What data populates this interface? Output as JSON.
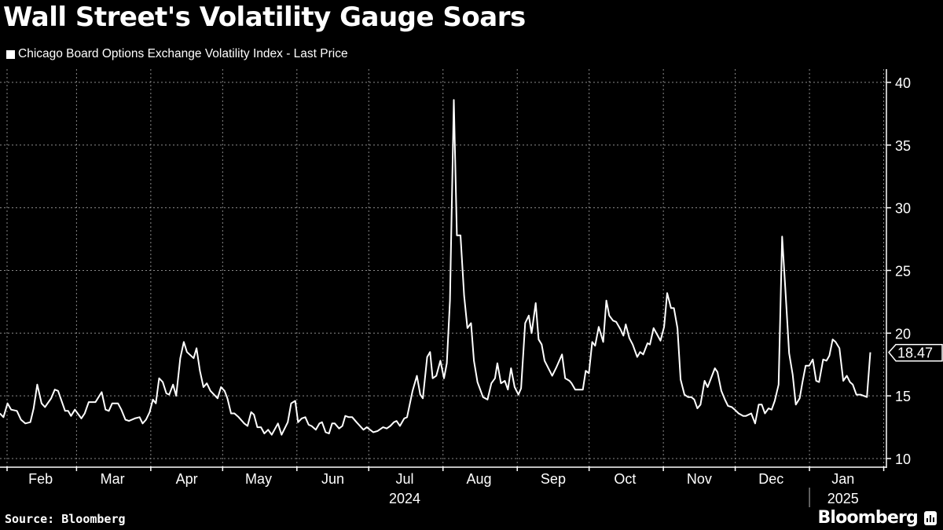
{
  "chart_data": {
    "type": "line",
    "title": "Wall Street's Volatility Gauge Soars",
    "legend": [
      "Chicago Board Options Exchange Volatility Index - Last Price"
    ],
    "legend_placement": "top-left",
    "source": "Source: Bloomberg",
    "ylim": [
      10,
      40
    ],
    "yticks": [
      10,
      15,
      20,
      25,
      30,
      35,
      40
    ],
    "y_axis_side": "right",
    "grid": true,
    "last_value_label": "18.47",
    "last_value": 18.47,
    "month_boundaries": [
      31,
      60,
      91,
      121,
      152,
      182,
      213,
      244,
      274,
      305,
      335,
      366,
      397
    ],
    "xticks": [
      {
        "label": "Feb",
        "day": 45
      },
      {
        "label": "Mar",
        "day": 75
      },
      {
        "label": "Apr",
        "day": 106
      },
      {
        "label": "May",
        "day": 136
      },
      {
        "label": "Jun",
        "day": 167
      },
      {
        "label": "Jul",
        "day": 197
      },
      {
        "label": "Aug",
        "day": 228
      },
      {
        "label": "Sep",
        "day": 259
      },
      {
        "label": "Oct",
        "day": 289
      },
      {
        "label": "Nov",
        "day": 320
      },
      {
        "label": "Dec",
        "day": 350
      },
      {
        "label": "Jan",
        "day": 380
      }
    ],
    "years": [
      {
        "label": "2024",
        "day": 197
      },
      {
        "label": "2025",
        "day": 380
      }
    ],
    "year_separator_day": 366,
    "xlim": [
      28,
      398
    ],
    "series": [
      {
        "name": "Chicago Board Options Exchange Volatility Index - Last Price",
        "points": [
          [
            28.0,
            13.6
          ],
          [
            29.5,
            13.3
          ],
          [
            31.2,
            14.4
          ],
          [
            32.7,
            13.9
          ],
          [
            35.1,
            13.8
          ],
          [
            36.8,
            13.1
          ],
          [
            38.6,
            12.8
          ],
          [
            40.7,
            12.9
          ],
          [
            42.1,
            14.0
          ],
          [
            43.6,
            15.9
          ],
          [
            45.4,
            14.4
          ],
          [
            46.8,
            14.1
          ],
          [
            49.4,
            14.8
          ],
          [
            50.9,
            15.5
          ],
          [
            52.3,
            15.4
          ],
          [
            55.2,
            13.8
          ],
          [
            56.5,
            13.8
          ],
          [
            57.7,
            13.4
          ],
          [
            59.3,
            13.9
          ],
          [
            62.0,
            13.2
          ],
          [
            63.4,
            13.6
          ],
          [
            65.1,
            14.5
          ],
          [
            67.9,
            14.5
          ],
          [
            70.5,
            15.3
          ],
          [
            72.1,
            13.9
          ],
          [
            73.5,
            13.8
          ],
          [
            74.9,
            14.4
          ],
          [
            77.3,
            14.4
          ],
          [
            78.7,
            13.9
          ],
          [
            80.4,
            13.1
          ],
          [
            81.9,
            13.0
          ],
          [
            84.3,
            13.2
          ],
          [
            86.3,
            13.3
          ],
          [
            87.6,
            12.8
          ],
          [
            89.0,
            13.1
          ],
          [
            90.5,
            13.7
          ],
          [
            91.9,
            14.7
          ],
          [
            93.1,
            14.4
          ],
          [
            94.5,
            16.4
          ],
          [
            96.0,
            16.1
          ],
          [
            97.5,
            15.2
          ],
          [
            98.7,
            15.1
          ],
          [
            100.3,
            15.9
          ],
          [
            101.6,
            15.0
          ],
          [
            103.3,
            18.0
          ],
          [
            104.8,
            19.3
          ],
          [
            106.1,
            18.5
          ],
          [
            108.9,
            18.0
          ],
          [
            110.1,
            18.8
          ],
          [
            111.5,
            17.0
          ],
          [
            113.0,
            15.7
          ],
          [
            114.4,
            16.0
          ],
          [
            115.9,
            15.4
          ],
          [
            118.9,
            14.8
          ],
          [
            120.3,
            15.7
          ],
          [
            121.8,
            15.4
          ],
          [
            123.0,
            14.8
          ],
          [
            124.5,
            13.6
          ],
          [
            125.9,
            13.6
          ],
          [
            127.7,
            13.3
          ],
          [
            130.0,
            12.8
          ],
          [
            131.4,
            12.6
          ],
          [
            132.9,
            13.7
          ],
          [
            134.1,
            13.5
          ],
          [
            135.5,
            12.5
          ],
          [
            137.0,
            12.5
          ],
          [
            138.4,
            12.0
          ],
          [
            140.0,
            12.3
          ],
          [
            141.5,
            11.9
          ],
          [
            144.1,
            12.8
          ],
          [
            145.6,
            11.9
          ],
          [
            148.2,
            12.9
          ],
          [
            149.6,
            14.4
          ],
          [
            151.3,
            14.6
          ],
          [
            152.5,
            12.9
          ],
          [
            154.0,
            13.2
          ],
          [
            155.5,
            13.3
          ],
          [
            156.9,
            12.7
          ],
          [
            158.1,
            12.6
          ],
          [
            159.9,
            12.3
          ],
          [
            161.4,
            12.8
          ],
          [
            162.5,
            12.9
          ],
          [
            164.0,
            12.1
          ],
          [
            165.4,
            12.0
          ],
          [
            166.7,
            12.8
          ],
          [
            167.8,
            12.8
          ],
          [
            169.6,
            12.4
          ],
          [
            171.0,
            12.6
          ],
          [
            172.2,
            13.4
          ],
          [
            173.7,
            13.3
          ],
          [
            175.1,
            13.3
          ],
          [
            176.9,
            12.9
          ],
          [
            179.8,
            12.3
          ],
          [
            181.2,
            12.5
          ],
          [
            183.9,
            12.1
          ],
          [
            185.7,
            12.2
          ],
          [
            188.0,
            12.5
          ],
          [
            189.5,
            12.4
          ],
          [
            191.0,
            12.6
          ],
          [
            192.5,
            12.9
          ],
          [
            193.6,
            13.0
          ],
          [
            195.0,
            12.6
          ],
          [
            196.8,
            13.2
          ],
          [
            198.0,
            13.3
          ],
          [
            200.3,
            15.4
          ],
          [
            202.1,
            16.6
          ],
          [
            203.5,
            15.1
          ],
          [
            204.6,
            14.8
          ],
          [
            206.4,
            18.1
          ],
          [
            207.6,
            18.5
          ],
          [
            208.7,
            16.4
          ],
          [
            210.2,
            16.6
          ],
          [
            211.9,
            17.8
          ],
          [
            213.4,
            16.4
          ],
          [
            214.6,
            17.6
          ],
          [
            215.9,
            22.6
          ],
          [
            217.5,
            38.6
          ],
          [
            218.8,
            27.8
          ],
          [
            220.3,
            27.8
          ],
          [
            221.8,
            23.0
          ],
          [
            223.2,
            20.4
          ],
          [
            224.7,
            20.8
          ],
          [
            225.9,
            17.8
          ],
          [
            227.4,
            16.1
          ],
          [
            229.7,
            14.9
          ],
          [
            231.6,
            14.7
          ],
          [
            233.2,
            16.0
          ],
          [
            234.7,
            16.4
          ],
          [
            235.7,
            17.6
          ],
          [
            237.2,
            16.0
          ],
          [
            238.8,
            16.2
          ],
          [
            240.1,
            15.5
          ],
          [
            241.4,
            17.2
          ],
          [
            242.9,
            15.7
          ],
          [
            244.5,
            15.1
          ],
          [
            245.6,
            15.6
          ],
          [
            247.3,
            20.8
          ],
          [
            248.8,
            21.4
          ],
          [
            250.0,
            20.0
          ],
          [
            251.7,
            22.4
          ],
          [
            252.9,
            19.5
          ],
          [
            254.2,
            19.1
          ],
          [
            255.4,
            17.8
          ],
          [
            258.6,
            16.6
          ],
          [
            260.4,
            17.3
          ],
          [
            262.7,
            18.3
          ],
          [
            264.0,
            16.4
          ],
          [
            265.8,
            16.2
          ],
          [
            266.7,
            16.0
          ],
          [
            268.2,
            15.5
          ],
          [
            271.4,
            15.5
          ],
          [
            272.6,
            17.0
          ],
          [
            273.9,
            16.8
          ],
          [
            275.3,
            19.3
          ],
          [
            276.5,
            19.0
          ],
          [
            278.0,
            20.5
          ],
          [
            279.9,
            19.3
          ],
          [
            281.2,
            22.6
          ],
          [
            282.4,
            21.4
          ],
          [
            284.0,
            21.0
          ],
          [
            285.3,
            20.9
          ],
          [
            287.1,
            20.3
          ],
          [
            288.3,
            19.8
          ],
          [
            289.3,
            20.7
          ],
          [
            290.8,
            19.6
          ],
          [
            292.2,
            19.1
          ],
          [
            294.1,
            18.1
          ],
          [
            295.3,
            18.5
          ],
          [
            296.6,
            18.3
          ],
          [
            298.4,
            19.2
          ],
          [
            299.4,
            19.1
          ],
          [
            300.9,
            20.4
          ],
          [
            303.8,
            19.4
          ],
          [
            305.3,
            20.5
          ],
          [
            306.6,
            23.2
          ],
          [
            308.2,
            22.0
          ],
          [
            309.4,
            22.0
          ],
          [
            310.9,
            20.4
          ],
          [
            312.2,
            16.3
          ],
          [
            313.8,
            15.1
          ],
          [
            315.3,
            14.9
          ],
          [
            316.7,
            14.9
          ],
          [
            317.9,
            14.7
          ],
          [
            319.2,
            14.0
          ],
          [
            320.5,
            14.3
          ],
          [
            322.2,
            16.2
          ],
          [
            323.5,
            15.7
          ],
          [
            326.5,
            17.2
          ],
          [
            327.6,
            16.9
          ],
          [
            329.2,
            15.4
          ],
          [
            330.7,
            14.7
          ],
          [
            332.0,
            14.2
          ],
          [
            333.6,
            14.1
          ],
          [
            334.8,
            13.9
          ],
          [
            336.4,
            13.6
          ],
          [
            338.3,
            13.4
          ],
          [
            339.5,
            13.4
          ],
          [
            341.7,
            13.6
          ],
          [
            343.3,
            12.8
          ],
          [
            344.8,
            14.3
          ],
          [
            346.1,
            14.3
          ],
          [
            347.4,
            13.6
          ],
          [
            348.9,
            14.0
          ],
          [
            350.2,
            13.9
          ],
          [
            351.5,
            14.6
          ],
          [
            353.1,
            15.9
          ],
          [
            354.6,
            27.7
          ],
          [
            355.9,
            23.6
          ],
          [
            357.5,
            18.4
          ],
          [
            359.0,
            16.7
          ],
          [
            360.3,
            14.3
          ],
          [
            361.9,
            14.8
          ],
          [
            363.1,
            16.1
          ],
          [
            364.4,
            17.4
          ],
          [
            365.9,
            17.4
          ],
          [
            367.4,
            17.9
          ],
          [
            368.8,
            16.2
          ],
          [
            370.0,
            16.1
          ],
          [
            371.7,
            17.9
          ],
          [
            373.1,
            17.8
          ],
          [
            374.3,
            18.2
          ],
          [
            375.7,
            19.5
          ],
          [
            376.9,
            19.3
          ],
          [
            378.5,
            18.8
          ],
          [
            380.1,
            16.2
          ],
          [
            381.6,
            16.6
          ],
          [
            382.9,
            16.1
          ],
          [
            384.1,
            15.9
          ],
          [
            385.6,
            15.1
          ],
          [
            387.3,
            15.1
          ],
          [
            390.0,
            14.9
          ],
          [
            391.4,
            18.47
          ]
        ]
      }
    ],
    "colors": {
      "background": "#000000",
      "line": "#ffffff",
      "grid": "#8a8a8a"
    }
  }
}
